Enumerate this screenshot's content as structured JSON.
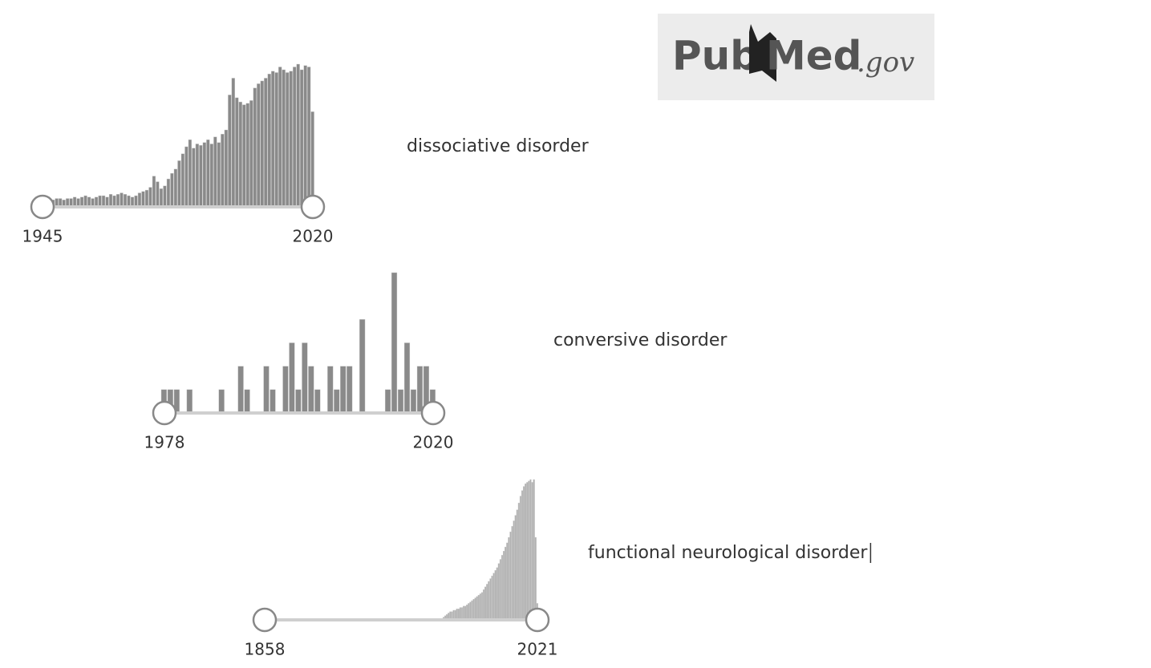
{
  "logo": {
    "pub": "Pub",
    "med": "Med",
    "gov": ".gov"
  },
  "chart_data": [
    {
      "type": "bar",
      "title": "dissociative disorder",
      "xlim": [
        1945,
        2020
      ],
      "xticks": [
        1945,
        2020
      ],
      "color": "#8a8a8a",
      "values": [
        5,
        5,
        6,
        5,
        6,
        6,
        5,
        6,
        6,
        7,
        6,
        7,
        8,
        7,
        6,
        7,
        8,
        8,
        7,
        9,
        8,
        9,
        10,
        9,
        8,
        7,
        8,
        10,
        11,
        12,
        14,
        22,
        18,
        13,
        15,
        20,
        24,
        27,
        33,
        38,
        43,
        48,
        42,
        45,
        44,
        46,
        48,
        45,
        50,
        46,
        52,
        55,
        80,
        92,
        78,
        75,
        73,
        74,
        76,
        85,
        88,
        90,
        92,
        95,
        97,
        96,
        100,
        98,
        96,
        97,
        100,
        102,
        98,
        101,
        100,
        68
      ]
    },
    {
      "type": "bar",
      "title": "conversive disorder",
      "xlim": [
        1978,
        2020
      ],
      "xticks": [
        1978,
        2020
      ],
      "color": "#8a8a8a",
      "values": [
        1,
        1,
        1,
        0,
        1,
        0,
        0,
        0,
        0,
        1,
        0,
        0,
        2,
        1,
        0,
        0,
        2,
        1,
        0,
        2,
        3,
        1,
        3,
        2,
        1,
        0,
        2,
        1,
        2,
        2,
        0,
        4,
        0,
        0,
        0,
        1,
        6,
        1,
        3,
        1,
        2,
        2,
        1
      ]
    },
    {
      "type": "bar",
      "title": "functional neurological disorder",
      "xlim": [
        1858,
        2021
      ],
      "xticks": [
        1858,
        2021
      ],
      "color": "#b0b0b0",
      "values": [
        0,
        0,
        0,
        0,
        0,
        0,
        0,
        0,
        0,
        0,
        0,
        0,
        0,
        0,
        0,
        0,
        0,
        0,
        0,
        0,
        0,
        0,
        0,
        0,
        0,
        0,
        0,
        0,
        0,
        0,
        0,
        0,
        0,
        0,
        0,
        0,
        0,
        0,
        0,
        0,
        0,
        0,
        0,
        0,
        0,
        0,
        0,
        0,
        0,
        0,
        0,
        0,
        0,
        0,
        0,
        0,
        0,
        0,
        0,
        0,
        0,
        0,
        0,
        0,
        0,
        0,
        0,
        0,
        0,
        0,
        0,
        0,
        0,
        0,
        0,
        0,
        0,
        0,
        0,
        0,
        0,
        0,
        0,
        0,
        0,
        0,
        0,
        0,
        1,
        1,
        1,
        1,
        1,
        1,
        1,
        1,
        1,
        1,
        1,
        1,
        1,
        1,
        1,
        1,
        1,
        1,
        1,
        2,
        3,
        4,
        5,
        6,
        6,
        7,
        7,
        8,
        8,
        9,
        9,
        10,
        10,
        11,
        12,
        13,
        14,
        15,
        16,
        17,
        18,
        19,
        20,
        22,
        24,
        26,
        28,
        30,
        32,
        34,
        36,
        38,
        41,
        44,
        47,
        50,
        53,
        56,
        60,
        64,
        68,
        72,
        76,
        80,
        85,
        90,
        94,
        97,
        99,
        100,
        101,
        102,
        100,
        102,
        60,
        12
      ]
    }
  ]
}
